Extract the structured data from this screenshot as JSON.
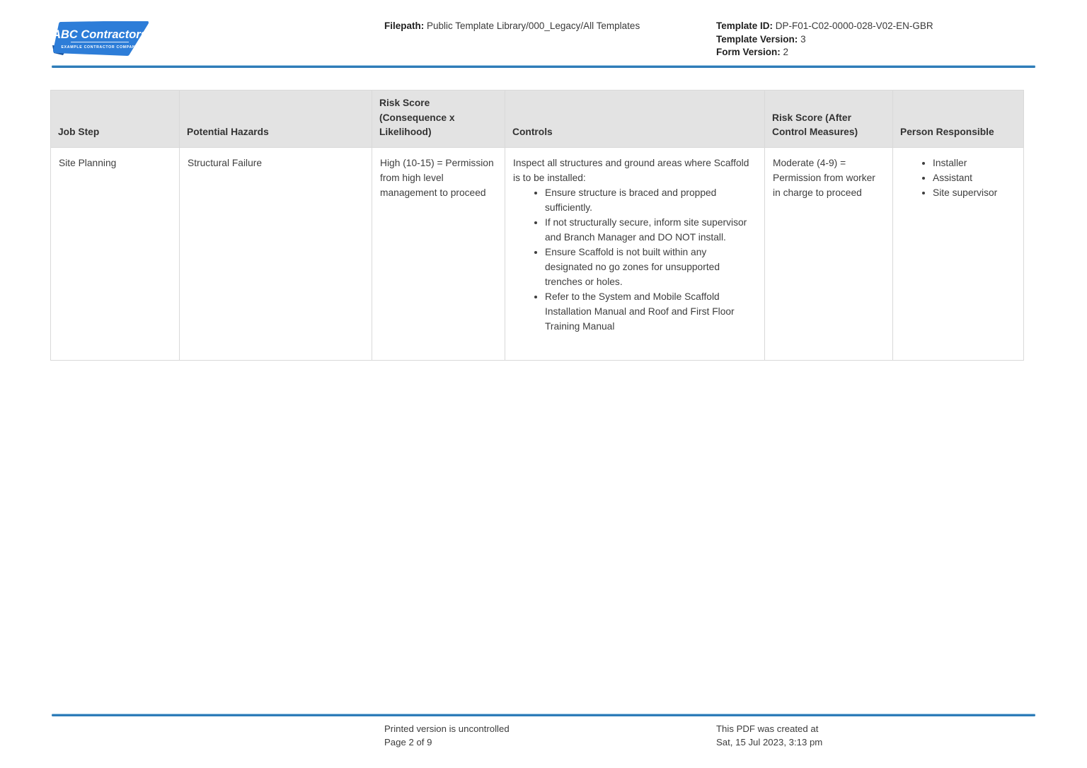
{
  "logo": {
    "title": "ABC Contractors",
    "subtitle": "EXAMPLE CONTRACTOR COMPANY"
  },
  "header": {
    "filepath_label": "Filepath:",
    "filepath_value": "Public Template Library/000_Legacy/All Templates",
    "template_id_label": "Template ID:",
    "template_id_value": "DP-F01-C02-0000-028-V02-EN-GBR",
    "template_version_label": "Template Version:",
    "template_version_value": "3",
    "form_version_label": "Form Version:",
    "form_version_value": "2"
  },
  "table": {
    "headers": [
      "Job Step",
      "Potential Hazards",
      "Risk Score (Consequence x Likelihood)",
      "Controls",
      "Risk Score (After Control Measures)",
      "Person Responsible"
    ],
    "rows": [
      {
        "job_step": "Site Planning",
        "potential_hazards": "Structural Failure",
        "risk_score": "High (10-15) = Permission from high level management to proceed",
        "controls_intro": "Inspect all structures and ground areas where Scaffold is to be installed:",
        "controls_bullets": [
          "Ensure structure is braced and propped sufficiently.",
          "If not structurally secure, inform site supervisor and Branch Manager and DO NOT install.",
          "Ensure Scaffold is not built within any designated no go zones for unsupported trenches or holes.",
          "Refer to the System and Mobile Scaffold Installation Manual and Roof and First Floor Training Manual"
        ],
        "risk_score_after": "Moderate (4-9) = Permission from worker in charge to proceed",
        "person_responsible": [
          "Installer",
          "Assistant",
          "Site supervisor"
        ]
      }
    ]
  },
  "footer": {
    "printed_note": "Printed version is uncontrolled",
    "page_info": "Page 2 of 9",
    "created_note": "This PDF was created at",
    "created_date": "Sat, 15 Jul 2023, 3:13 pm"
  },
  "colors": {
    "accent_rule": "#2e7cb8",
    "logo_blue": "#2d7dd8",
    "logo_dark_blue": "#17519b",
    "table_header_bg": "#e3e3e3",
    "table_border": "#d9d9d9",
    "body_text": "#3e3e3e"
  }
}
